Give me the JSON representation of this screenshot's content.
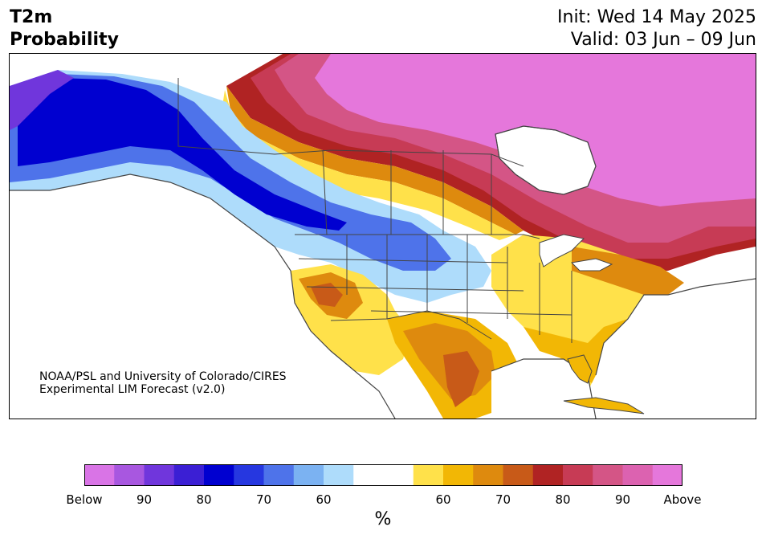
{
  "title": {
    "variable": "T2m",
    "subtitle": "Probability",
    "init": "Init: Wed 14 May 2025",
    "valid": "Valid: 03 Jun – 09 Jun"
  },
  "credit": {
    "line1": "NOAA/PSL and University of Colorado/CIRES",
    "line2": "Experimental LIM Forecast (v2.0)"
  },
  "colorbar": {
    "unit": "%",
    "colors": [
      "#d974e6",
      "#a857e0",
      "#7036dc",
      "#3b1fd4",
      "#0000d0",
      "#2637e0",
      "#4e73ea",
      "#7bb2f2",
      "#aedcfb",
      "#ffffff",
      "#ffffff",
      "#ffe14a",
      "#f2b705",
      "#de8a0e",
      "#c85a18",
      "#b02323",
      "#c73b55",
      "#d45586",
      "#dc62b0",
      "#e577db"
    ],
    "tick_labels": [
      "Below",
      "90",
      "80",
      "70",
      "60",
      "60",
      "70",
      "80",
      "90",
      "Above"
    ]
  },
  "map_regions": [
    "Alaska: below normal",
    "Pacific Northwest / Western Canada: below normal",
    "Northern Rockies & Plains: below normal",
    "Northern Canada: above normal",
    "Eastern Canada: above normal",
    "Great Lakes / Northeast US: above normal",
    "Southwest US: above normal",
    "Texas & Mexico: above normal",
    "Southeast US: above normal",
    "Florida: above normal"
  ]
}
